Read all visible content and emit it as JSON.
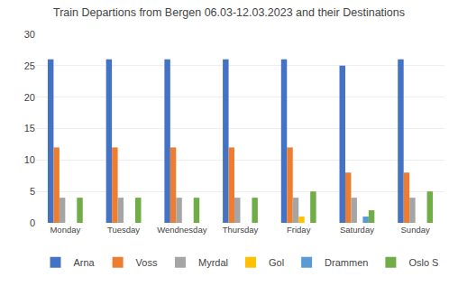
{
  "chart_data": {
    "type": "bar",
    "title": "Train Departions from Bergen 06.03-12.03.2023 and their Destinations",
    "categories": [
      "Monday",
      "Tuesday",
      "Wendnesday",
      "Thursday",
      "Friday",
      "Saturday",
      "Sunday"
    ],
    "series": [
      {
        "name": "Arna",
        "color": "#4472C4",
        "values": [
          26,
          26,
          26,
          26,
          26,
          25,
          26
        ]
      },
      {
        "name": "Voss",
        "color": "#ED7D31",
        "values": [
          12,
          12,
          12,
          12,
          12,
          8,
          8
        ]
      },
      {
        "name": "Myrdal",
        "color": "#A5A5A5",
        "values": [
          4,
          4,
          4,
          4,
          4,
          4,
          4
        ]
      },
      {
        "name": "Gol",
        "color": "#FFC000",
        "values": [
          0,
          0,
          0,
          0,
          1,
          0,
          0
        ]
      },
      {
        "name": "Drammen",
        "color": "#5B9BD5",
        "values": [
          0,
          0,
          0,
          0,
          0,
          1,
          0
        ]
      },
      {
        "name": "Oslo S",
        "color": "#70AD47",
        "values": [
          4,
          4,
          4,
          4,
          5,
          2,
          5
        ]
      }
    ],
    "ylim": [
      0,
      30
    ],
    "yticks": [
      0,
      5,
      10,
      15,
      20,
      25,
      30
    ],
    "grid": true,
    "legend": "bottom"
  }
}
